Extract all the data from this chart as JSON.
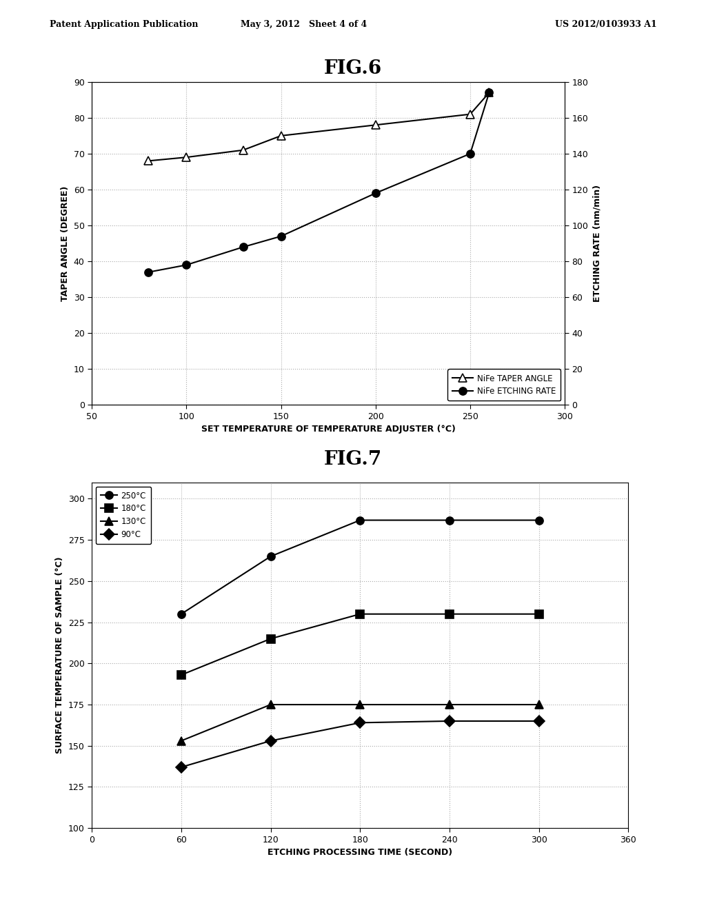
{
  "fig6_title": "FIG.6",
  "fig7_title": "FIG.7",
  "header_left": "Patent Application Publication",
  "header_mid": "May 3, 2012   Sheet 4 of 4",
  "header_right": "US 2012/0103933 A1",
  "fig6": {
    "taper_angle_x": [
      80,
      100,
      130,
      150,
      200,
      250,
      260
    ],
    "taper_angle_y": [
      68,
      69,
      71,
      75,
      78,
      81,
      87
    ],
    "etching_rate_x": [
      80,
      100,
      130,
      150,
      200,
      250,
      260
    ],
    "etching_rate_y": [
      37,
      39,
      44,
      47,
      59,
      70,
      87
    ],
    "xlabel": "SET TEMPERATURE OF TEMPERATURE ADJUSTER (°C)",
    "ylabel_left": "TAPER ANGLE (DEGREE)",
    "ylabel_right": "ETCHING RATE (nm/min)",
    "xlim": [
      50,
      300
    ],
    "ylim_left": [
      0,
      90
    ],
    "ylim_right": [
      0,
      180
    ],
    "xticks": [
      50,
      100,
      150,
      200,
      250,
      300
    ],
    "yticks_left": [
      0,
      10,
      20,
      30,
      40,
      50,
      60,
      70,
      80,
      90
    ],
    "yticks_right": [
      0,
      20,
      40,
      60,
      80,
      100,
      120,
      140,
      160,
      180
    ],
    "legend_taper": "NiFe TAPER ANGLE",
    "legend_etching": "NiFe ETCHING RATE",
    "line_color": "#000000",
    "grid_color": "#aaaaaa"
  },
  "fig7": {
    "xlabel": "ETCHING PROCESSING TIME (SECOND)",
    "ylabel": "SURFACE TEMPERATURE OF SAMPLE (°C)",
    "xlim": [
      0,
      360
    ],
    "ylim": [
      100,
      310
    ],
    "xticks": [
      0,
      60,
      120,
      180,
      240,
      300,
      360
    ],
    "yticks": [
      100,
      125,
      150,
      175,
      200,
      225,
      250,
      275,
      300
    ],
    "series": [
      {
        "label": "250°C",
        "x": [
          60,
          120,
          180,
          240,
          300
        ],
        "y": [
          230,
          265,
          287,
          287,
          287
        ],
        "marker": "o",
        "color": "#000000",
        "linestyle": "-"
      },
      {
        "label": "180°C",
        "x": [
          60,
          120,
          180,
          240,
          300
        ],
        "y": [
          193,
          215,
          230,
          230,
          230
        ],
        "marker": "s",
        "color": "#000000",
        "linestyle": "-"
      },
      {
        "label": "130°C",
        "x": [
          60,
          120,
          180,
          240,
          300
        ],
        "y": [
          153,
          175,
          175,
          175,
          175
        ],
        "marker": "^",
        "color": "#000000",
        "linestyle": "-"
      },
      {
        "label": "90°C",
        "x": [
          60,
          120,
          180,
          240,
          300
        ],
        "y": [
          137,
          153,
          164,
          165,
          165
        ],
        "marker": "D",
        "color": "#000000",
        "linestyle": "-"
      }
    ],
    "grid_color": "#aaaaaa"
  },
  "background_color": "#ffffff",
  "text_color": "#000000"
}
